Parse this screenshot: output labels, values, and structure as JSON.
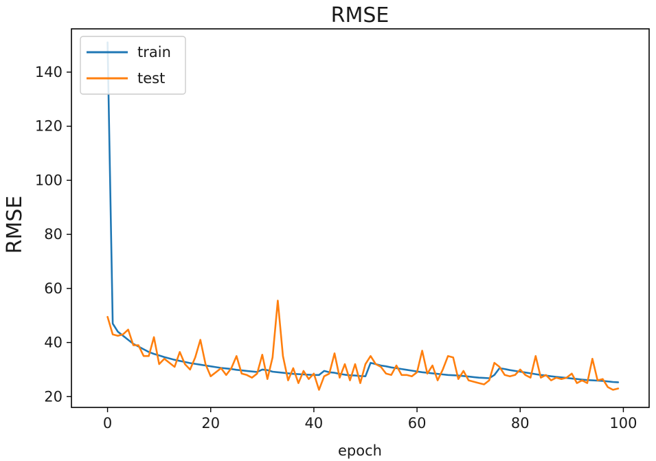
{
  "chart_data": {
    "type": "line",
    "title": "RMSE",
    "xlabel": "epoch",
    "ylabel": "RMSE",
    "xlim": [
      -7,
      105
    ],
    "ylim": [
      16,
      156
    ],
    "xticks": [
      0,
      20,
      40,
      60,
      80,
      100
    ],
    "yticks": [
      20,
      40,
      60,
      80,
      100,
      120,
      140
    ],
    "grid": false,
    "legend_position": "top-left",
    "series": [
      {
        "name": "train",
        "color": "#1f77b4",
        "x": [
          0,
          1,
          2,
          3,
          4,
          5,
          6,
          7,
          8,
          9,
          10,
          11,
          12,
          13,
          14,
          15,
          16,
          17,
          18,
          19,
          20,
          21,
          22,
          23,
          24,
          25,
          26,
          27,
          28,
          29,
          30,
          31,
          32,
          33,
          34,
          35,
          36,
          37,
          38,
          39,
          40,
          41,
          42,
          43,
          44,
          45,
          46,
          47,
          48,
          49,
          50,
          51,
          52,
          53,
          54,
          55,
          56,
          57,
          58,
          59,
          60,
          61,
          62,
          63,
          64,
          65,
          66,
          67,
          68,
          69,
          70,
          71,
          72,
          73,
          74,
          75,
          76,
          77,
          78,
          79,
          80,
          81,
          82,
          83,
          84,
          85,
          86,
          87,
          88,
          89,
          90,
          91,
          92,
          93,
          94,
          95,
          96,
          97,
          98,
          99
        ],
        "values": [
          151,
          47,
          44,
          42.5,
          41,
          39.5,
          38.5,
          37.5,
          36.5,
          35.8,
          35.2,
          34.6,
          34.1,
          33.6,
          33.2,
          32.8,
          32.4,
          32.1,
          31.8,
          31.5,
          31.2,
          30.9,
          30.6,
          30.4,
          30.2,
          29.9,
          29.7,
          29.5,
          29.3,
          29.1,
          30,
          29.8,
          29.2,
          29,
          28.8,
          28.6,
          28.4,
          28.3,
          28.2,
          28.1,
          28,
          28,
          29.5,
          29,
          28.8,
          28.4,
          28.1,
          27.9,
          27.8,
          27.6,
          27.5,
          32.5,
          32,
          31.5,
          31.2,
          30.8,
          30.5,
          30.2,
          29.9,
          29.6,
          29.3,
          29,
          28.8,
          28.6,
          28.4,
          28.2,
          28,
          27.9,
          27.8,
          27.6,
          27.4,
          27.2,
          27,
          26.9,
          26.8,
          28,
          30.5,
          30.2,
          29.8,
          29.5,
          29.2,
          28.9,
          28.6,
          28.3,
          28,
          27.8,
          27.5,
          27.3,
          27.1,
          26.9,
          26.7,
          26.5,
          26.3,
          26.1,
          26,
          25.9,
          25.8,
          25.6,
          25.4,
          25.3
        ]
      },
      {
        "name": "test",
        "color": "#ff7f0e",
        "x": [
          0,
          1,
          2,
          3,
          4,
          5,
          6,
          7,
          8,
          9,
          10,
          11,
          12,
          13,
          14,
          15,
          16,
          17,
          18,
          19,
          20,
          21,
          22,
          23,
          24,
          25,
          26,
          27,
          28,
          29,
          30,
          31,
          32,
          33,
          34,
          35,
          36,
          37,
          38,
          39,
          40,
          41,
          42,
          43,
          44,
          45,
          46,
          47,
          48,
          49,
          50,
          51,
          52,
          53,
          54,
          55,
          56,
          57,
          58,
          59,
          60,
          61,
          62,
          63,
          64,
          65,
          66,
          67,
          68,
          69,
          70,
          71,
          72,
          73,
          74,
          75,
          76,
          77,
          78,
          79,
          80,
          81,
          82,
          83,
          84,
          85,
          86,
          87,
          88,
          89,
          90,
          91,
          92,
          93,
          94,
          95,
          96,
          97,
          98,
          99
        ],
        "values": [
          49.5,
          43,
          42.5,
          43,
          44.8,
          39,
          39,
          35,
          35,
          42,
          32,
          34,
          32.5,
          31,
          36.5,
          32,
          30,
          34.5,
          41,
          32,
          27.5,
          29,
          30.5,
          28,
          30.5,
          35,
          28.5,
          28,
          27,
          28.5,
          35.5,
          26.5,
          34.5,
          55.5,
          35,
          26,
          30.5,
          25,
          29.5,
          26.5,
          28.5,
          22.5,
          27.5,
          28.5,
          36,
          27,
          32,
          26,
          32,
          25,
          32,
          35,
          32,
          31,
          28.5,
          28,
          31.5,
          28,
          28,
          27.5,
          29,
          37,
          28.5,
          31.5,
          26,
          30,
          35,
          34.5,
          26.5,
          29.5,
          26,
          25.5,
          25,
          24.5,
          26,
          32.5,
          31,
          28,
          27.5,
          28,
          30,
          28,
          27,
          35,
          27,
          28,
          26,
          27,
          26.5,
          27,
          28.5,
          25,
          26,
          25,
          34,
          26,
          26.5,
          23.5,
          22.5,
          23
        ]
      }
    ]
  }
}
